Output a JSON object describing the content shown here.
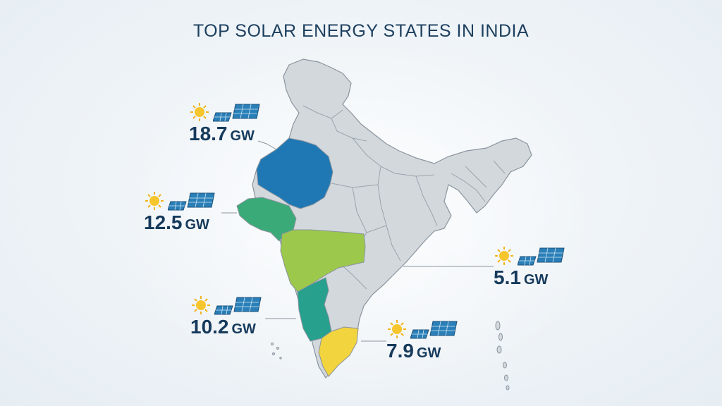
{
  "title": "TOP SOLAR ENERGY STATES IN INDIA",
  "colors": {
    "rajasthan": "#1f78b4",
    "gujarat": "#3aaa78",
    "maharashtra": "#9cc84c",
    "karnataka": "#27a08e",
    "tamil_nadu": "#f2d43e",
    "other_states": "#d3d8dd",
    "borders": "#8a949e",
    "text": "#163a5b"
  },
  "callouts": [
    {
      "id": "rajasthan",
      "value": "18.7",
      "unit": "GW"
    },
    {
      "id": "gujarat",
      "value": "12.5",
      "unit": "GW"
    },
    {
      "id": "karnataka",
      "value": "10.2",
      "unit": "GW"
    },
    {
      "id": "tamil-nadu",
      "value": "7.9",
      "unit": "GW"
    },
    {
      "id": "maharashtra",
      "value": "5.1",
      "unit": "GW"
    }
  ],
  "icons": [
    "sun-icon",
    "solar-panel-icon"
  ]
}
